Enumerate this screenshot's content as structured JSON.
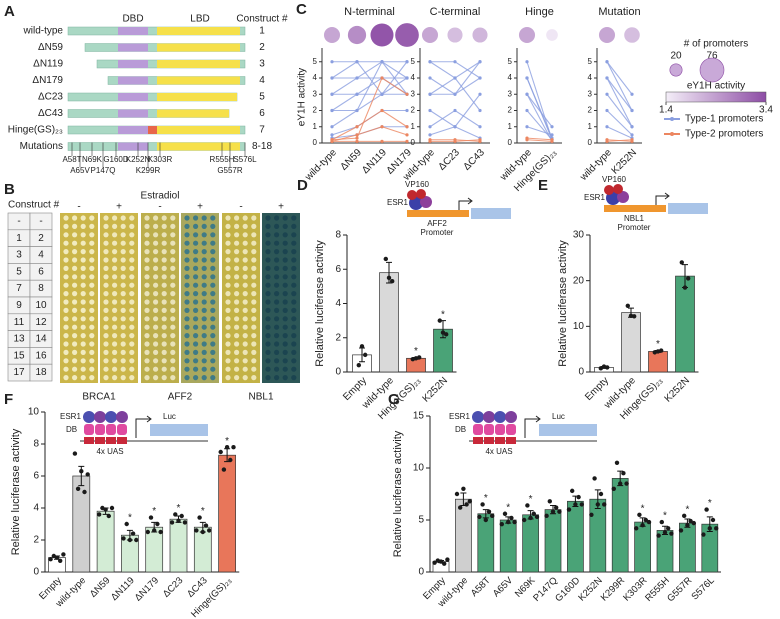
{
  "construct_map": {
    "label": "A",
    "headers": [
      "DBD",
      "LBD",
      "Construct #"
    ],
    "rows": [
      {
        "name": "wild-type",
        "number": "1"
      },
      {
        "name": "ΔN59",
        "number": "2"
      },
      {
        "name": "ΔN119",
        "number": "3"
      },
      {
        "name": "ΔN179",
        "number": "4"
      },
      {
        "name": "ΔC23",
        "number": "5"
      },
      {
        "name": "ΔC43",
        "number": "6"
      },
      {
        "name": "Hinge(GS)₂₃",
        "number": "7"
      },
      {
        "name": "Mutations",
        "number": "8-18"
      }
    ],
    "mutations": [
      "A58T",
      "N69K",
      "G160D",
      "K252N",
      "K303R",
      "R555H",
      "S576L",
      "A65V",
      "P147Q",
      "K299R",
      "G557R"
    ]
  },
  "plates": {
    "label": "B",
    "table_header": "Construct #",
    "table": [
      [
        "-",
        "-"
      ],
      [
        "1",
        "2"
      ],
      [
        "3",
        "4"
      ],
      [
        "5",
        "6"
      ],
      [
        "7",
        "8"
      ],
      [
        "9",
        "10"
      ],
      [
        "11",
        "12"
      ],
      [
        "13",
        "14"
      ],
      [
        "15",
        "16"
      ],
      [
        "17",
        "18"
      ]
    ],
    "treatment": "Estradiol",
    "panels": [
      {
        "name": "BRCA1",
        "conditions": [
          "-",
          "+"
        ],
        "backgrounds": [
          "#cbb64a",
          "#cbb64a"
        ],
        "spots": [
          "#f1ebbf",
          "#efe8bb"
        ]
      },
      {
        "name": "AFF2",
        "conditions": [
          "-",
          "+"
        ],
        "backgrounds": [
          "#bcae4c",
          "#a9a85e"
        ],
        "spots": [
          "#e8e2b8",
          "#3f7b86"
        ]
      },
      {
        "name": "NBL1",
        "conditions": [
          "-",
          "+"
        ],
        "backgrounds": [
          "#c3b246",
          "#2d5757"
        ],
        "spots": [
          "#ece5b6",
          "#1b4450"
        ]
      }
    ]
  },
  "chart_data": [
    {
      "type": "line",
      "label": "C",
      "ylabel": "eY1H activity",
      "ylim": [
        0,
        5.6
      ],
      "yticks": [
        0,
        1,
        2,
        3,
        4,
        5
      ],
      "panels": [
        {
          "title": "N-terminal",
          "categories": [
            "wild-type",
            "ΔN59",
            "ΔN119",
            "ΔN179"
          ],
          "promoters": [
            34,
            44,
            70,
            74
          ],
          "activity": [
            2.3,
            2.6,
            3.3,
            3.2
          ],
          "type1": [
            [
              5,
              5,
              5,
              5
            ],
            [
              4,
              4,
              5,
              4
            ],
            [
              3,
              4,
              4,
              3
            ],
            [
              2,
              3,
              4,
              4
            ],
            [
              1,
              2,
              3,
              3
            ],
            [
              0.5,
              1,
              2,
              2
            ],
            [
              3,
              3,
              3,
              5
            ],
            [
              0.3,
              0.5,
              1,
              1
            ],
            [
              4,
              5,
              3,
              4
            ],
            [
              2,
              2,
              5,
              3
            ]
          ],
          "type2": [
            [
              0.2,
              0.3,
              4,
              3
            ],
            [
              0.2,
              1,
              2,
              1
            ],
            [
              0.1,
              0.5,
              1,
              0.5
            ],
            [
              0.1,
              0.1,
              0.1,
              0.1
            ]
          ]
        },
        {
          "title": "C-terminal",
          "categories": [
            "wild-type",
            "ΔC23",
            "ΔC43"
          ],
          "promoters": [
            34,
            30,
            30
          ],
          "activity": [
            2.3,
            2.0,
            2.1
          ],
          "type1": [
            [
              5,
              5,
              4
            ],
            [
              4,
              3,
              5
            ],
            [
              3,
              4,
              2
            ],
            [
              2,
              1,
              3
            ],
            [
              1,
              2,
              1
            ],
            [
              5,
              4,
              5
            ],
            [
              3,
              3,
              4
            ],
            [
              0.5,
              1,
              0.3
            ]
          ],
          "type2": [
            [
              0.2,
              0.2,
              0.1
            ],
            [
              0.1,
              0.1,
              0.2
            ]
          ]
        },
        {
          "title": "Hinge",
          "categories": [
            "wild-type",
            "Hinge(GS)₂₃"
          ],
          "promoters": [
            34,
            18
          ],
          "activity": [
            2.3,
            1.5
          ],
          "type1": [
            [
              5,
              0.2
            ],
            [
              4,
              0.3
            ],
            [
              3,
              0.1
            ],
            [
              2,
              0.2
            ],
            [
              1,
              0.5
            ],
            [
              3,
              1
            ],
            [
              4,
              0.2
            ]
          ],
          "type2": [
            [
              0.2,
              0.1
            ],
            [
              0.3,
              0.2
            ]
          ]
        },
        {
          "title": "Mutation",
          "categories": [
            "wild-type",
            "K252N"
          ],
          "promoters": [
            34,
            32
          ],
          "activity": [
            2.3,
            2.0
          ],
          "type1": [
            [
              5,
              3
            ],
            [
              4,
              2
            ],
            [
              3,
              1
            ],
            [
              2,
              0.5
            ],
            [
              5,
              2
            ],
            [
              1,
              0.3
            ],
            [
              4,
              1
            ]
          ],
          "type2": [
            [
              0.2,
              0.1
            ],
            [
              0.1,
              0.2
            ]
          ]
        }
      ],
      "legend": [
        {
          "name": "Type-1 promoters",
          "color": "#8b9fe0"
        },
        {
          "name": "Type-2 promoters",
          "color": "#ec8660"
        }
      ],
      "size_legend": {
        "title": "# of promoters",
        "values": [
          20,
          76
        ]
      },
      "color_legend": {
        "title": "eY1H activity",
        "ticks": [
          1.4,
          3.4
        ],
        "colors": [
          "#f4eef8",
          "#8d4da5"
        ]
      }
    },
    {
      "type": "bar",
      "label": "D",
      "ylabel": "Relative luciferase activity",
      "ylim": [
        0,
        8
      ],
      "yticks": [
        0,
        2,
        4,
        6,
        8
      ],
      "categories": [
        "Empty",
        "wild-type",
        "Hinge(GS)₂₃",
        "K252N"
      ],
      "values": [
        1.0,
        5.8,
        0.8,
        2.5
      ],
      "errors": [
        0.4,
        0.6,
        0.05,
        0.5
      ],
      "points": [
        [
          0.4,
          1.5,
          1.0
        ],
        [
          6.6,
          5.5,
          5.3
        ],
        [
          0.75,
          0.8,
          0.85
        ],
        [
          3.0,
          2.3,
          2.2
        ]
      ],
      "colors": [
        "#ffffff",
        "#d9d9d9",
        "#e8765a",
        "#4aa377"
      ],
      "stars": [
        null,
        null,
        "*",
        "*"
      ],
      "inset": [
        "VP160",
        "ESR1",
        "AFF2",
        "Promoter"
      ]
    },
    {
      "type": "bar",
      "label": "E",
      "ylabel": "Relative luciferase activity",
      "ylim": [
        0,
        30
      ],
      "yticks": [
        0,
        10,
        20,
        30
      ],
      "categories": [
        "Empty",
        "wild-type",
        "Hinge(GS)₂₃",
        "K252N"
      ],
      "values": [
        1.0,
        13.0,
        4.5,
        21.0
      ],
      "errors": [
        0.2,
        1.0,
        0.2,
        2.5
      ],
      "points": [
        [
          0.8,
          1.2,
          1.0
        ],
        [
          14.5,
          12.3,
          12.2
        ],
        [
          4.3,
          4.5,
          4.7
        ],
        [
          24.0,
          18.5,
          20.5
        ]
      ],
      "colors": [
        "#ffffff",
        "#d9d9d9",
        "#e8765a",
        "#4aa377"
      ],
      "stars": [
        null,
        null,
        "*",
        null
      ],
      "inset": [
        "VP160",
        "ESR1",
        "NBL1",
        "Promoter"
      ]
    },
    {
      "type": "bar",
      "label": "F",
      "ylabel": "Relative luciferase activity",
      "ylim": [
        0,
        10
      ],
      "yticks": [
        0,
        2,
        4,
        6,
        8,
        10
      ],
      "categories": [
        "Empty",
        "wild-type",
        "ΔN59",
        "ΔN119",
        "ΔN179",
        "ΔC23",
        "ΔC43",
        "Hinge(GS)₂₃"
      ],
      "values": [
        0.9,
        6.0,
        3.8,
        2.3,
        2.8,
        3.3,
        2.8,
        7.3
      ],
      "errors": [
        0.1,
        0.6,
        0.2,
        0.3,
        0.3,
        0.2,
        0.3,
        0.4
      ],
      "points": [
        [
          0.8,
          1.0,
          0.9,
          0.7,
          1.1
        ],
        [
          7.4,
          5.2,
          6.3,
          5.0,
          6.1
        ],
        [
          3.6,
          4.0,
          3.9,
          3.5,
          4.0
        ],
        [
          2.1,
          3.0,
          2.0,
          2.4,
          2.0
        ],
        [
          2.5,
          3.4,
          2.6,
          3.0,
          2.5
        ],
        [
          3.1,
          3.6,
          3.2,
          3.5,
          3.1
        ],
        [
          2.6,
          3.4,
          2.5,
          2.9,
          2.6
        ],
        [
          7.5,
          6.4,
          7.8,
          7.0,
          7.8
        ]
      ],
      "colors": [
        "#ffffff",
        "#cfcfcf",
        "#d3ecd5",
        "#d3ecd5",
        "#d3ecd5",
        "#d3ecd5",
        "#d3ecd5",
        "#e8765a"
      ],
      "stars": [
        null,
        null,
        null,
        "*",
        "*",
        "*",
        "*",
        "*"
      ],
      "inset": [
        "ESR1",
        "DB",
        "4x UAS",
        "Luc"
      ]
    },
    {
      "type": "bar",
      "label": "G",
      "ylabel": "Relative luciferase activity",
      "ylim": [
        0,
        15
      ],
      "yticks": [
        0,
        5,
        10,
        15
      ],
      "categories": [
        "Empty",
        "wild-type",
        "A58T",
        "A65V",
        "N69K",
        "P147Q",
        "G160D",
        "K252N",
        "K299R",
        "K303R",
        "R555H",
        "G557R",
        "S576L"
      ],
      "values": [
        1.0,
        7.0,
        5.6,
        5.0,
        5.5,
        6.0,
        6.8,
        7.0,
        9.0,
        4.8,
        4.0,
        4.7,
        4.6
      ],
      "errors": [
        0.1,
        0.6,
        0.4,
        0.3,
        0.4,
        0.4,
        0.5,
        0.9,
        0.7,
        0.4,
        0.4,
        0.4,
        0.7
      ],
      "points": [
        [
          0.9,
          1.1,
          1.0,
          0.8,
          1.2
        ],
        [
          7.5,
          6.2,
          8.0,
          6.5,
          6.8
        ],
        [
          5.3,
          6.5,
          5.0,
          5.8,
          5.4
        ],
        [
          4.6,
          5.6,
          4.8,
          5.2,
          4.8
        ],
        [
          5.0,
          6.4,
          5.2,
          5.6,
          5.3
        ],
        [
          5.4,
          6.8,
          5.8,
          6.2,
          5.8
        ],
        [
          6.0,
          7.8,
          6.5,
          7.2,
          6.5
        ],
        [
          5.5,
          9.0,
          6.5,
          7.5,
          6.5
        ],
        [
          8.0,
          10.5,
          8.5,
          9.5,
          8.5
        ],
        [
          4.2,
          5.5,
          4.5,
          5.0,
          4.8
        ],
        [
          3.5,
          4.8,
          3.8,
          4.2,
          3.7
        ],
        [
          4.0,
          5.4,
          4.5,
          4.9,
          4.7
        ],
        [
          3.6,
          6.0,
          4.2,
          5.0,
          4.2
        ]
      ],
      "colors": [
        "#ffffff",
        "#cfcfcf",
        "#4aa377",
        "#4aa377",
        "#4aa377",
        "#4aa377",
        "#4aa377",
        "#4aa377",
        "#4aa377",
        "#4aa377",
        "#4aa377",
        "#4aa377",
        "#4aa377"
      ],
      "stars": [
        null,
        null,
        "*",
        "*",
        "*",
        null,
        null,
        null,
        null,
        "*",
        "*",
        "*",
        "*"
      ],
      "inset": [
        "ESR1",
        "DB",
        "4x UAS",
        "Luc"
      ]
    }
  ]
}
